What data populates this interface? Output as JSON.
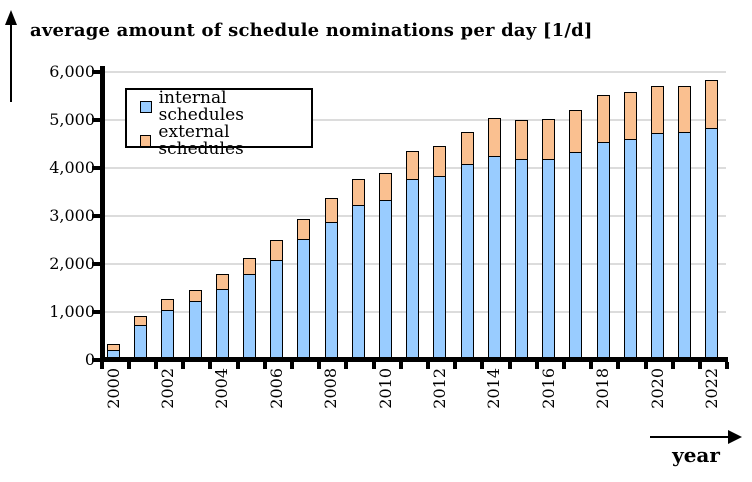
{
  "title": "average amount of schedule nominations per day [1/d]",
  "x_axis_label": "year",
  "legend": {
    "items": [
      {
        "label": "internal schedules",
        "color": "#99CCFF"
      },
      {
        "label": "external schedules",
        "color": "#FAC090"
      }
    ]
  },
  "colors": {
    "internal": "#99CCFF",
    "external": "#FAC090",
    "axis": "#000000",
    "gridline": "#DCDCDC",
    "background": "#FFFFFF"
  },
  "chart_data": {
    "type": "bar",
    "stacked": true,
    "title": "average amount of schedule nominations per day [1/d]",
    "xlabel": "year",
    "ylabel": "average amount of schedule nominations per day [1/d]",
    "categories": [
      2000,
      2001,
      2002,
      2003,
      2004,
      2005,
      2006,
      2007,
      2008,
      2009,
      2010,
      2011,
      2012,
      2013,
      2014,
      2015,
      2016,
      2017,
      2018,
      2019,
      2020,
      2021,
      2022
    ],
    "x_tick_labels": [
      "2000",
      "2002",
      "2004",
      "2006",
      "2008",
      "2010",
      "2012",
      "2014",
      "2016",
      "2018",
      "2020",
      "2022"
    ],
    "series": [
      {
        "name": "internal schedules",
        "color": "#99CCFF",
        "values": [
          170,
          680,
          1000,
          1180,
          1430,
          1740,
          2040,
          2480,
          2840,
          3190,
          3300,
          3720,
          3800,
          4040,
          4210,
          4140,
          4140,
          4300,
          4490,
          4560,
          4680,
          4710,
          4800
        ]
      },
      {
        "name": "external schedules",
        "color": "#FAC090",
        "values": [
          130,
          190,
          230,
          230,
          310,
          330,
          410,
          420,
          490,
          540,
          560,
          590,
          620,
          670,
          790,
          810,
          840,
          880,
          980,
          980,
          980,
          960,
          1000
        ]
      }
    ],
    "ylim": [
      0,
      6000
    ],
    "y_ticks": [
      0,
      1000,
      2000,
      3000,
      4000,
      5000,
      6000
    ],
    "y_tick_labels": [
      "0",
      "1,000",
      "2,000",
      "3,000",
      "4,000",
      "5,000",
      "6,000"
    ],
    "grid": true,
    "legend_position": "top-left-inside"
  }
}
